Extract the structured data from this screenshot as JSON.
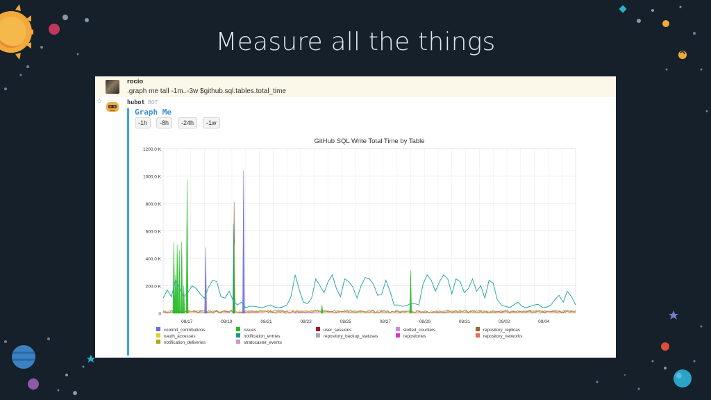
{
  "slide": {
    "title": "Measure all the things"
  },
  "message": {
    "user": "rocio",
    "command": ".graph me tall -1m..-3w $github.sql.tables.total_time"
  },
  "bot": {
    "name": "hubot",
    "tag": "BOT",
    "attachment_title": "Graph Me",
    "buttons": [
      "-1h",
      "-8h",
      "-24h",
      "-1w"
    ]
  },
  "colors": {
    "background": "#15202a",
    "accent": "#3aa3e3",
    "teal": "#2aa7a7"
  },
  "chart_data": {
    "type": "line",
    "title": "GitHub SQL Write Total Time by Table",
    "ylim": [
      0,
      1200
    ],
    "yticks": [
      "0",
      "200.0 K",
      "400.0 K",
      "600.0 K",
      "800.0 K",
      "1000.0 K",
      "1200.0 K"
    ],
    "xticks": [
      "08/17",
      "08/19",
      "08/21",
      "08/23",
      "08/25",
      "08/27",
      "08/29",
      "08/31",
      "09/02",
      "09/04"
    ],
    "xlim": [
      0,
      100
    ],
    "grid": true,
    "legend_position": "bottom",
    "legend": [
      {
        "name": "commit_contributions",
        "color": "#6c6cdc"
      },
      {
        "name": "issues",
        "color": "#22bb22"
      },
      {
        "name": "user_sessions",
        "color": "#aa1122"
      },
      {
        "name": "slotted_counters",
        "color": "#c98ad8"
      },
      {
        "name": "repository_replicas",
        "color": "#996633"
      },
      {
        "name": "oauth_accesses",
        "color": "#e0d020"
      },
      {
        "name": "notification_entries",
        "color": "#1a9a7a"
      },
      {
        "name": "repository_backup_statuses",
        "color": "#aaaaaa"
      },
      {
        "name": "repositories",
        "color": "#dd33cc"
      },
      {
        "name": "repository_networks",
        "color": "#ee6655"
      },
      {
        "name": "notification_deliveries",
        "color": "#aaaa22"
      },
      {
        "name": "stratocaster_events",
        "color": "#c49ac8"
      }
    ],
    "series": [
      {
        "name": "issues",
        "color": "#22bb22",
        "spikes": [
          [
            2.6,
            520
          ],
          [
            3.0,
            280
          ],
          [
            3.4,
            500
          ],
          [
            3.9,
            460
          ],
          [
            4.5,
            520
          ],
          [
            5.0,
            200
          ],
          [
            5.8,
            970
          ],
          [
            38.5,
            60
          ],
          [
            60.0,
            310
          ]
        ]
      },
      {
        "name": "commit_contributions",
        "color": "#6c6cdc",
        "spikes": [
          [
            10.3,
            480
          ],
          [
            19.5,
            1040
          ]
        ]
      },
      {
        "name": "repository_replicas",
        "color": "#996633",
        "spikes": [
          [
            17.2,
            810
          ]
        ]
      },
      {
        "name": "oauth_accesses",
        "color": "#e0d020",
        "spikes": [
          [
            17.3,
            500
          ]
        ]
      },
      {
        "name": "notification_entries",
        "color": "#1a9a7a",
        "spikes": [
          [
            17.1,
            650
          ]
        ]
      },
      {
        "name": "teal",
        "color": "#2aa7a7",
        "x": [
          0,
          1,
          2,
          3,
          4,
          5,
          6,
          7,
          8,
          9,
          10,
          11,
          12,
          13,
          14,
          15,
          16,
          17,
          18,
          19,
          20,
          21,
          22,
          23,
          24,
          25,
          26,
          27,
          28,
          29,
          30,
          31,
          32,
          33,
          34,
          35,
          36,
          37,
          38,
          39,
          40,
          41,
          42,
          43,
          44,
          45,
          46,
          47,
          48,
          49,
          50,
          51,
          52,
          53,
          54,
          55,
          56,
          57,
          58,
          59,
          60,
          61,
          62,
          63,
          64,
          65,
          66,
          67,
          68,
          69,
          70,
          71,
          72,
          73,
          74,
          75,
          76,
          77,
          78,
          79,
          80,
          81,
          82,
          83,
          84,
          85,
          86,
          87,
          88,
          89,
          90,
          91,
          92,
          93,
          94,
          95,
          96,
          97,
          98,
          99,
          100
        ],
        "y": [
          110,
          170,
          120,
          240,
          180,
          120,
          150,
          200,
          180,
          140,
          110,
          190,
          240,
          230,
          120,
          110,
          160,
          90,
          60,
          80,
          40,
          50,
          50,
          45,
          40,
          50,
          60,
          45,
          40,
          45,
          60,
          120,
          280,
          170,
          80,
          70,
          110,
          250,
          200,
          150,
          230,
          280,
          180,
          120,
          250,
          230,
          190,
          110,
          200,
          260,
          250,
          210,
          130,
          140,
          240,
          160,
          60,
          60,
          50,
          55,
          70,
          70,
          60,
          210,
          280,
          240,
          160,
          230,
          280,
          250,
          140,
          250,
          230,
          150,
          180,
          250,
          160,
          200,
          110,
          240,
          220,
          100,
          60,
          50,
          40,
          60,
          80,
          50,
          40,
          50,
          60,
          65,
          40,
          45,
          60,
          100,
          130,
          80,
          160,
          120,
          60
        ]
      }
    ],
    "noise_band": {
      "max": 25
    }
  }
}
